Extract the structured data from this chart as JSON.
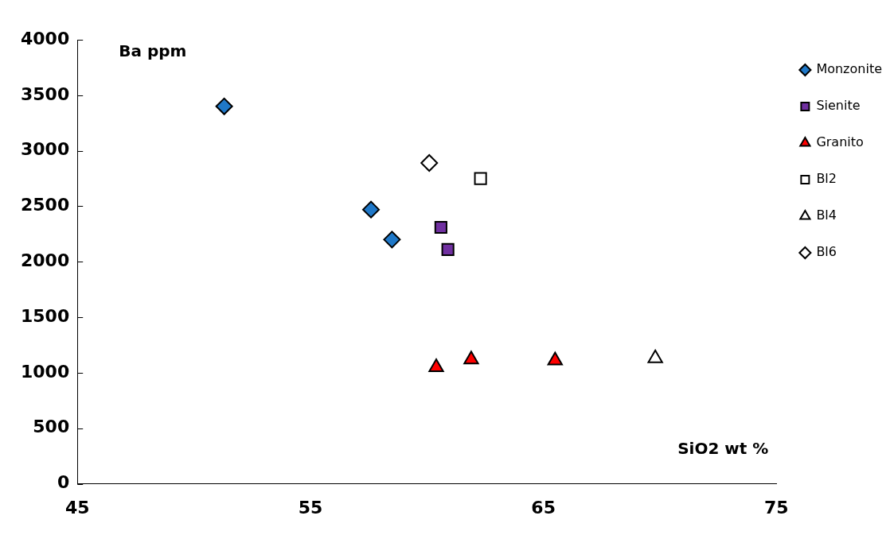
{
  "chart_data": {
    "type": "scatter",
    "xlabel": "SiO2 wt %",
    "ylabel": "Ba ppm",
    "xlim": [
      45,
      75
    ],
    "xticks": [
      45,
      55,
      65,
      75
    ],
    "ylim": [
      0,
      4000
    ],
    "yticks": [
      0,
      500,
      1000,
      1500,
      2000,
      2500,
      3000,
      3500,
      4000
    ],
    "grid": false,
    "legend": "top right",
    "series": [
      {
        "name": "Monzonite",
        "color": "#1f78c8",
        "marker": "diamond",
        "x": [
          51.3,
          57.6,
          58.5
        ],
        "values": [
          3400,
          2470,
          2200
        ]
      },
      {
        "name": "Sienite",
        "color": "#7030a0",
        "marker": "square",
        "x": [
          60.6,
          60.9
        ],
        "values": [
          2310,
          2110
        ]
      },
      {
        "name": "Granito",
        "color": "#ff0000",
        "marker": "triangle",
        "x": [
          60.4,
          61.9,
          65.5
        ],
        "values": [
          1050,
          1120,
          1110
        ]
      },
      {
        "name": "Bl2",
        "color": "#ffffff",
        "marker": "square",
        "x": [
          62.3
        ],
        "values": [
          2750
        ]
      },
      {
        "name": "Bl4",
        "color": "#ffffff",
        "marker": "triangle",
        "x": [
          69.8
        ],
        "values": [
          1130
        ]
      },
      {
        "name": "Bl6",
        "color": "#ffffff",
        "marker": "diamond",
        "x": [
          60.1
        ],
        "values": [
          2890
        ]
      }
    ]
  }
}
